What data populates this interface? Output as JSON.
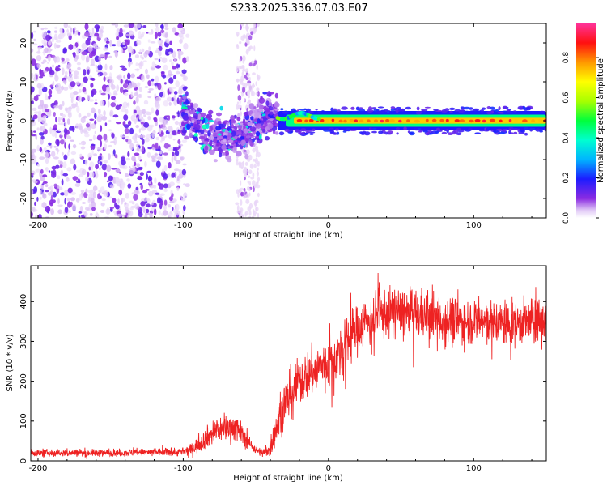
{
  "title": "S233.2025.336.07.03.E07",
  "colors": {
    "snr_line": "#ee2222",
    "frame": "#000000",
    "spectro_bg": "#ffffff",
    "sparse_speckle": "#d9c4f2",
    "dense_speckle": "#7a1fd6"
  },
  "chart_data": [
    {
      "type": "heatmap",
      "name": "spectrogram",
      "title": "S233.2025.336.07.03.E07",
      "xlabel": "Height of straight line (km)",
      "ylabel": "Frequency (Hz)",
      "xlim": [
        -205,
        150
      ],
      "ylim": [
        -25,
        25
      ],
      "xticks": [
        -200,
        -100,
        0,
        100
      ],
      "yticks": [
        -20,
        -10,
        0,
        10,
        20
      ],
      "colorbar": {
        "label": "Normalized spectral amplitude",
        "range": [
          0,
          0.97
        ],
        "ticks": [
          "0.0",
          "0.2",
          "0.4",
          "0.6",
          "0.8"
        ],
        "tick_values": [
          0.0,
          0.2,
          0.4,
          0.6,
          0.8
        ]
      },
      "features": {
        "noise_region_km": [
          -205,
          -97
        ],
        "noise_amplitude": 0.15,
        "vertical_noise_stripe_km": [
          -63,
          -48
        ],
        "transition_region_km": [
          -100,
          -35
        ],
        "transition_freq_hz": [
          -9,
          3
        ],
        "ridge_region_km": [
          -35,
          150
        ],
        "ridge_frequency_hz": 0,
        "ridge_width_hz": 2.5,
        "ridge_peak_amplitude": 0.95,
        "ridge_core_amplitude": 0.75,
        "ridge_edge_amplitude": 0.2
      }
    },
    {
      "type": "line",
      "name": "snr",
      "xlabel": "Height of straight line (km)",
      "ylabel": "SNR (10 * v/v)",
      "xlim": [
        -205,
        150
      ],
      "ylim": [
        0,
        490
      ],
      "xticks": [
        -200,
        -100,
        0,
        100
      ],
      "yticks": [
        0,
        100,
        200,
        300,
        400
      ],
      "series": [
        {
          "name": "SNR",
          "x": [
            -205,
            -180,
            -150,
            -120,
            -100,
            -95,
            -90,
            -85,
            -80,
            -75,
            -70,
            -65,
            -60,
            -55,
            -50,
            -45,
            -40,
            -35,
            -30,
            -25,
            -20,
            -15,
            -10,
            -5,
            0,
            5,
            10,
            15,
            20,
            25,
            30,
            40,
            50,
            60,
            70,
            80,
            90,
            100,
            110,
            120,
            130,
            140,
            150
          ],
          "y": [
            20,
            20,
            20,
            22,
            22,
            28,
            40,
            55,
            70,
            80,
            82,
            85,
            70,
            45,
            28,
            20,
            35,
            95,
            150,
            175,
            200,
            215,
            225,
            240,
            240,
            260,
            280,
            310,
            330,
            350,
            360,
            370,
            375,
            370,
            360,
            355,
            350,
            350,
            350,
            345,
            345,
            350,
            355
          ],
          "spread": [
            8,
            8,
            8,
            8,
            10,
            12,
            18,
            22,
            28,
            30,
            30,
            30,
            25,
            15,
            10,
            10,
            25,
            40,
            50,
            55,
            55,
            55,
            55,
            55,
            55,
            55,
            55,
            55,
            55,
            55,
            55,
            55,
            55,
            55,
            55,
            55,
            55,
            50,
            50,
            50,
            50,
            50,
            50
          ]
        }
      ]
    }
  ]
}
